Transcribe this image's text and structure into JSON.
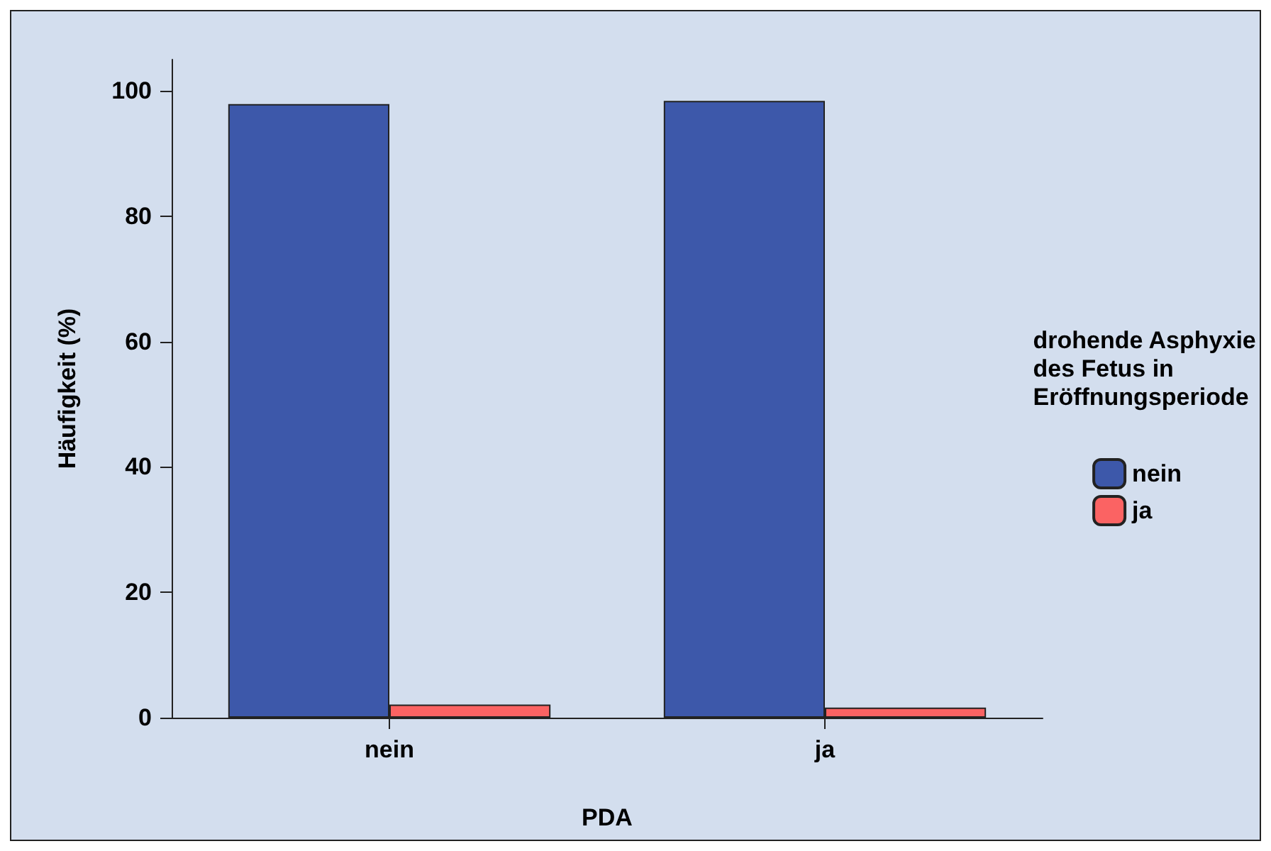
{
  "chart_data": {
    "type": "bar",
    "categories": [
      "nein",
      "ja"
    ],
    "xlabel": "PDA",
    "ylabel": "Häufigkeit (%)",
    "legend_title": "drohende Asphyxie\ndes Fetus in\nEröffnungsperiode",
    "legend": "right",
    "series": [
      {
        "name": "nein",
        "color": "#3d58aa",
        "values": [
          97.9,
          98.4
        ]
      },
      {
        "name": "ja",
        "color": "#fb6363",
        "values": [
          2.1,
          1.6
        ]
      }
    ],
    "ylim": [
      0,
      105
    ],
    "yticks": [
      0,
      20,
      40,
      60,
      80,
      100
    ],
    "grid": false
  }
}
